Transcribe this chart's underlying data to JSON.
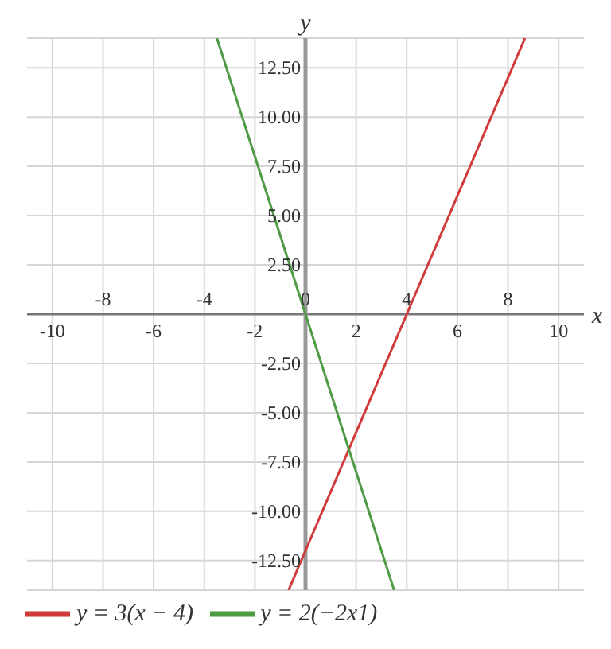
{
  "chart_data": {
    "type": "line",
    "xlabel": "x",
    "ylabel": "y",
    "xlim": [
      -11,
      11
    ],
    "xticks": [
      -10,
      -6,
      -2,
      2,
      6,
      10
    ],
    "x2lim": [
      -11,
      11
    ],
    "x2ticks": [
      -8,
      -4,
      0,
      4,
      8
    ],
    "ylim": [
      -14,
      14
    ],
    "yticks": [
      {
        "value": -12.5,
        "label": "-12.50"
      },
      {
        "value": -10,
        "label": "-10.00"
      },
      {
        "value": -7.5,
        "label": "-7.50"
      },
      {
        "value": -5,
        "label": "-5.00"
      },
      {
        "value": -2.5,
        "label": "-2.50"
      },
      {
        "value": 2.5,
        "label": "2.50"
      },
      {
        "value": 5,
        "label": "5.00"
      },
      {
        "value": 7.5,
        "label": "7.50"
      },
      {
        "value": 10,
        "label": "10.00"
      },
      {
        "value": 12.5,
        "label": "12.50"
      }
    ],
    "grid": true,
    "legend": "bottom",
    "series": [
      {
        "name": "y = 3(x − 4)",
        "color": "#d03a3a",
        "x": [
          -0.67,
          4,
          8.67
        ],
        "values": [
          -14,
          0,
          14
        ]
      },
      {
        "name": "y = 2(−2x1)",
        "color": "#4f9a45",
        "x": [
          -3.5,
          0,
          3.5
        ],
        "values": [
          14,
          0,
          -14
        ]
      }
    ]
  }
}
